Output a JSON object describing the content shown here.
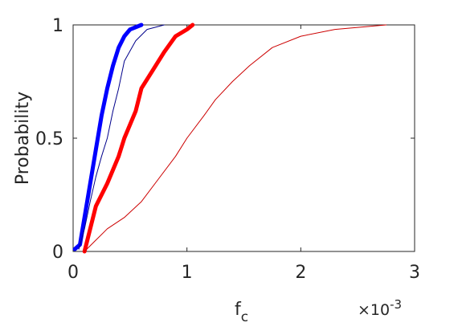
{
  "chart_data": {
    "type": "line",
    "xlabel": "f",
    "xlabel_subscript": "c",
    "x_multiplier": "×10",
    "x_multiplier_exponent": "-3",
    "ylabel": "Probability",
    "xlim": [
      0,
      3
    ],
    "xticks": [
      0,
      1,
      2,
      3
    ],
    "ylim": [
      0,
      1
    ],
    "yticks": [
      0,
      0.5,
      1
    ],
    "series": [
      {
        "color": "#0000ff",
        "line_width": 5,
        "x": [
          0.015,
          0.06,
          0.1,
          0.15,
          0.2,
          0.25,
          0.3,
          0.35,
          0.4,
          0.45,
          0.5,
          0.6
        ],
        "values": [
          0.01,
          0.03,
          0.15,
          0.3,
          0.45,
          0.6,
          0.72,
          0.82,
          0.9,
          0.95,
          0.98,
          1.0
        ]
      },
      {
        "color": "#00008b",
        "line_width": 1,
        "x": [
          0.05,
          0.1,
          0.15,
          0.2,
          0.25,
          0.3,
          0.35,
          0.4,
          0.45,
          0.55,
          0.65,
          0.8
        ],
        "values": [
          0.01,
          0.1,
          0.22,
          0.33,
          0.42,
          0.5,
          0.62,
          0.72,
          0.84,
          0.93,
          0.98,
          1.0
        ]
      },
      {
        "color": "#ff0000",
        "line_width": 5,
        "x": [
          0.1,
          0.15,
          0.2,
          0.3,
          0.4,
          0.45,
          0.55,
          0.6,
          0.7,
          0.8,
          0.9,
          1.0,
          1.05
        ],
        "values": [
          0.0,
          0.1,
          0.2,
          0.3,
          0.42,
          0.5,
          0.62,
          0.72,
          0.8,
          0.88,
          0.95,
          0.98,
          1.0
        ]
      },
      {
        "color": "#cc0000",
        "line_width": 1,
        "x": [
          0.1,
          0.2,
          0.3,
          0.45,
          0.6,
          0.75,
          0.9,
          1.0,
          1.15,
          1.25,
          1.4,
          1.55,
          1.75,
          2.0,
          2.3,
          2.75
        ],
        "values": [
          0.0,
          0.05,
          0.1,
          0.15,
          0.22,
          0.32,
          0.42,
          0.5,
          0.6,
          0.67,
          0.75,
          0.82,
          0.9,
          0.95,
          0.98,
          1.0
        ]
      }
    ]
  }
}
